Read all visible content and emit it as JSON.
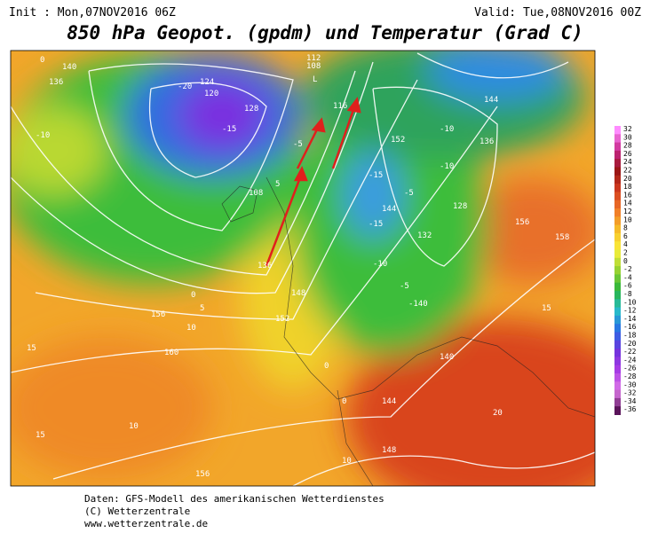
{
  "header": {
    "init": "Init : Mon,07NOV2016 06Z",
    "valid": "Valid: Tue,08NOV2016 00Z",
    "title": "850 hPa Geopot. (gpdm) und Temperatur (Grad C)"
  },
  "colorbar": {
    "labels": [
      "32",
      "30",
      "28",
      "26",
      "24",
      "22",
      "20",
      "18",
      "16",
      "14",
      "12",
      "10",
      "8",
      "6",
      "4",
      "2",
      "0",
      "-2",
      "-4",
      "-6",
      "-8",
      "-10",
      "-12",
      "-14",
      "-16",
      "-18",
      "-20",
      "-22",
      "-24",
      "-26",
      "-28",
      "-30",
      "-32",
      "-34",
      "-36"
    ]
  },
  "map": {
    "labels": [
      "140",
      "136",
      "-10",
      "0",
      "-20",
      "124",
      "120",
      "128",
      "-15",
      "112",
      "108",
      "L",
      "116",
      "-5",
      "144",
      "136",
      "-15",
      "-10",
      "152",
      "-10",
      "-15",
      "144",
      "132",
      "-5",
      "128",
      "-10",
      "-5",
      "5",
      "108",
      "0",
      "136",
      "148",
      "156",
      "152",
      "10",
      "160",
      "15",
      "10",
      "15",
      "156",
      "20",
      "148",
      "144",
      "15",
      "156",
      "158",
      "0",
      "-140",
      "140",
      "10",
      "0",
      "5"
    ]
  },
  "footer": {
    "line1": "Daten: GFS-Modell des amerikanischen Wetterdienstes",
    "line2": "(C) Wetterzentrale",
    "line3": "www.wetterzentrale.de"
  }
}
